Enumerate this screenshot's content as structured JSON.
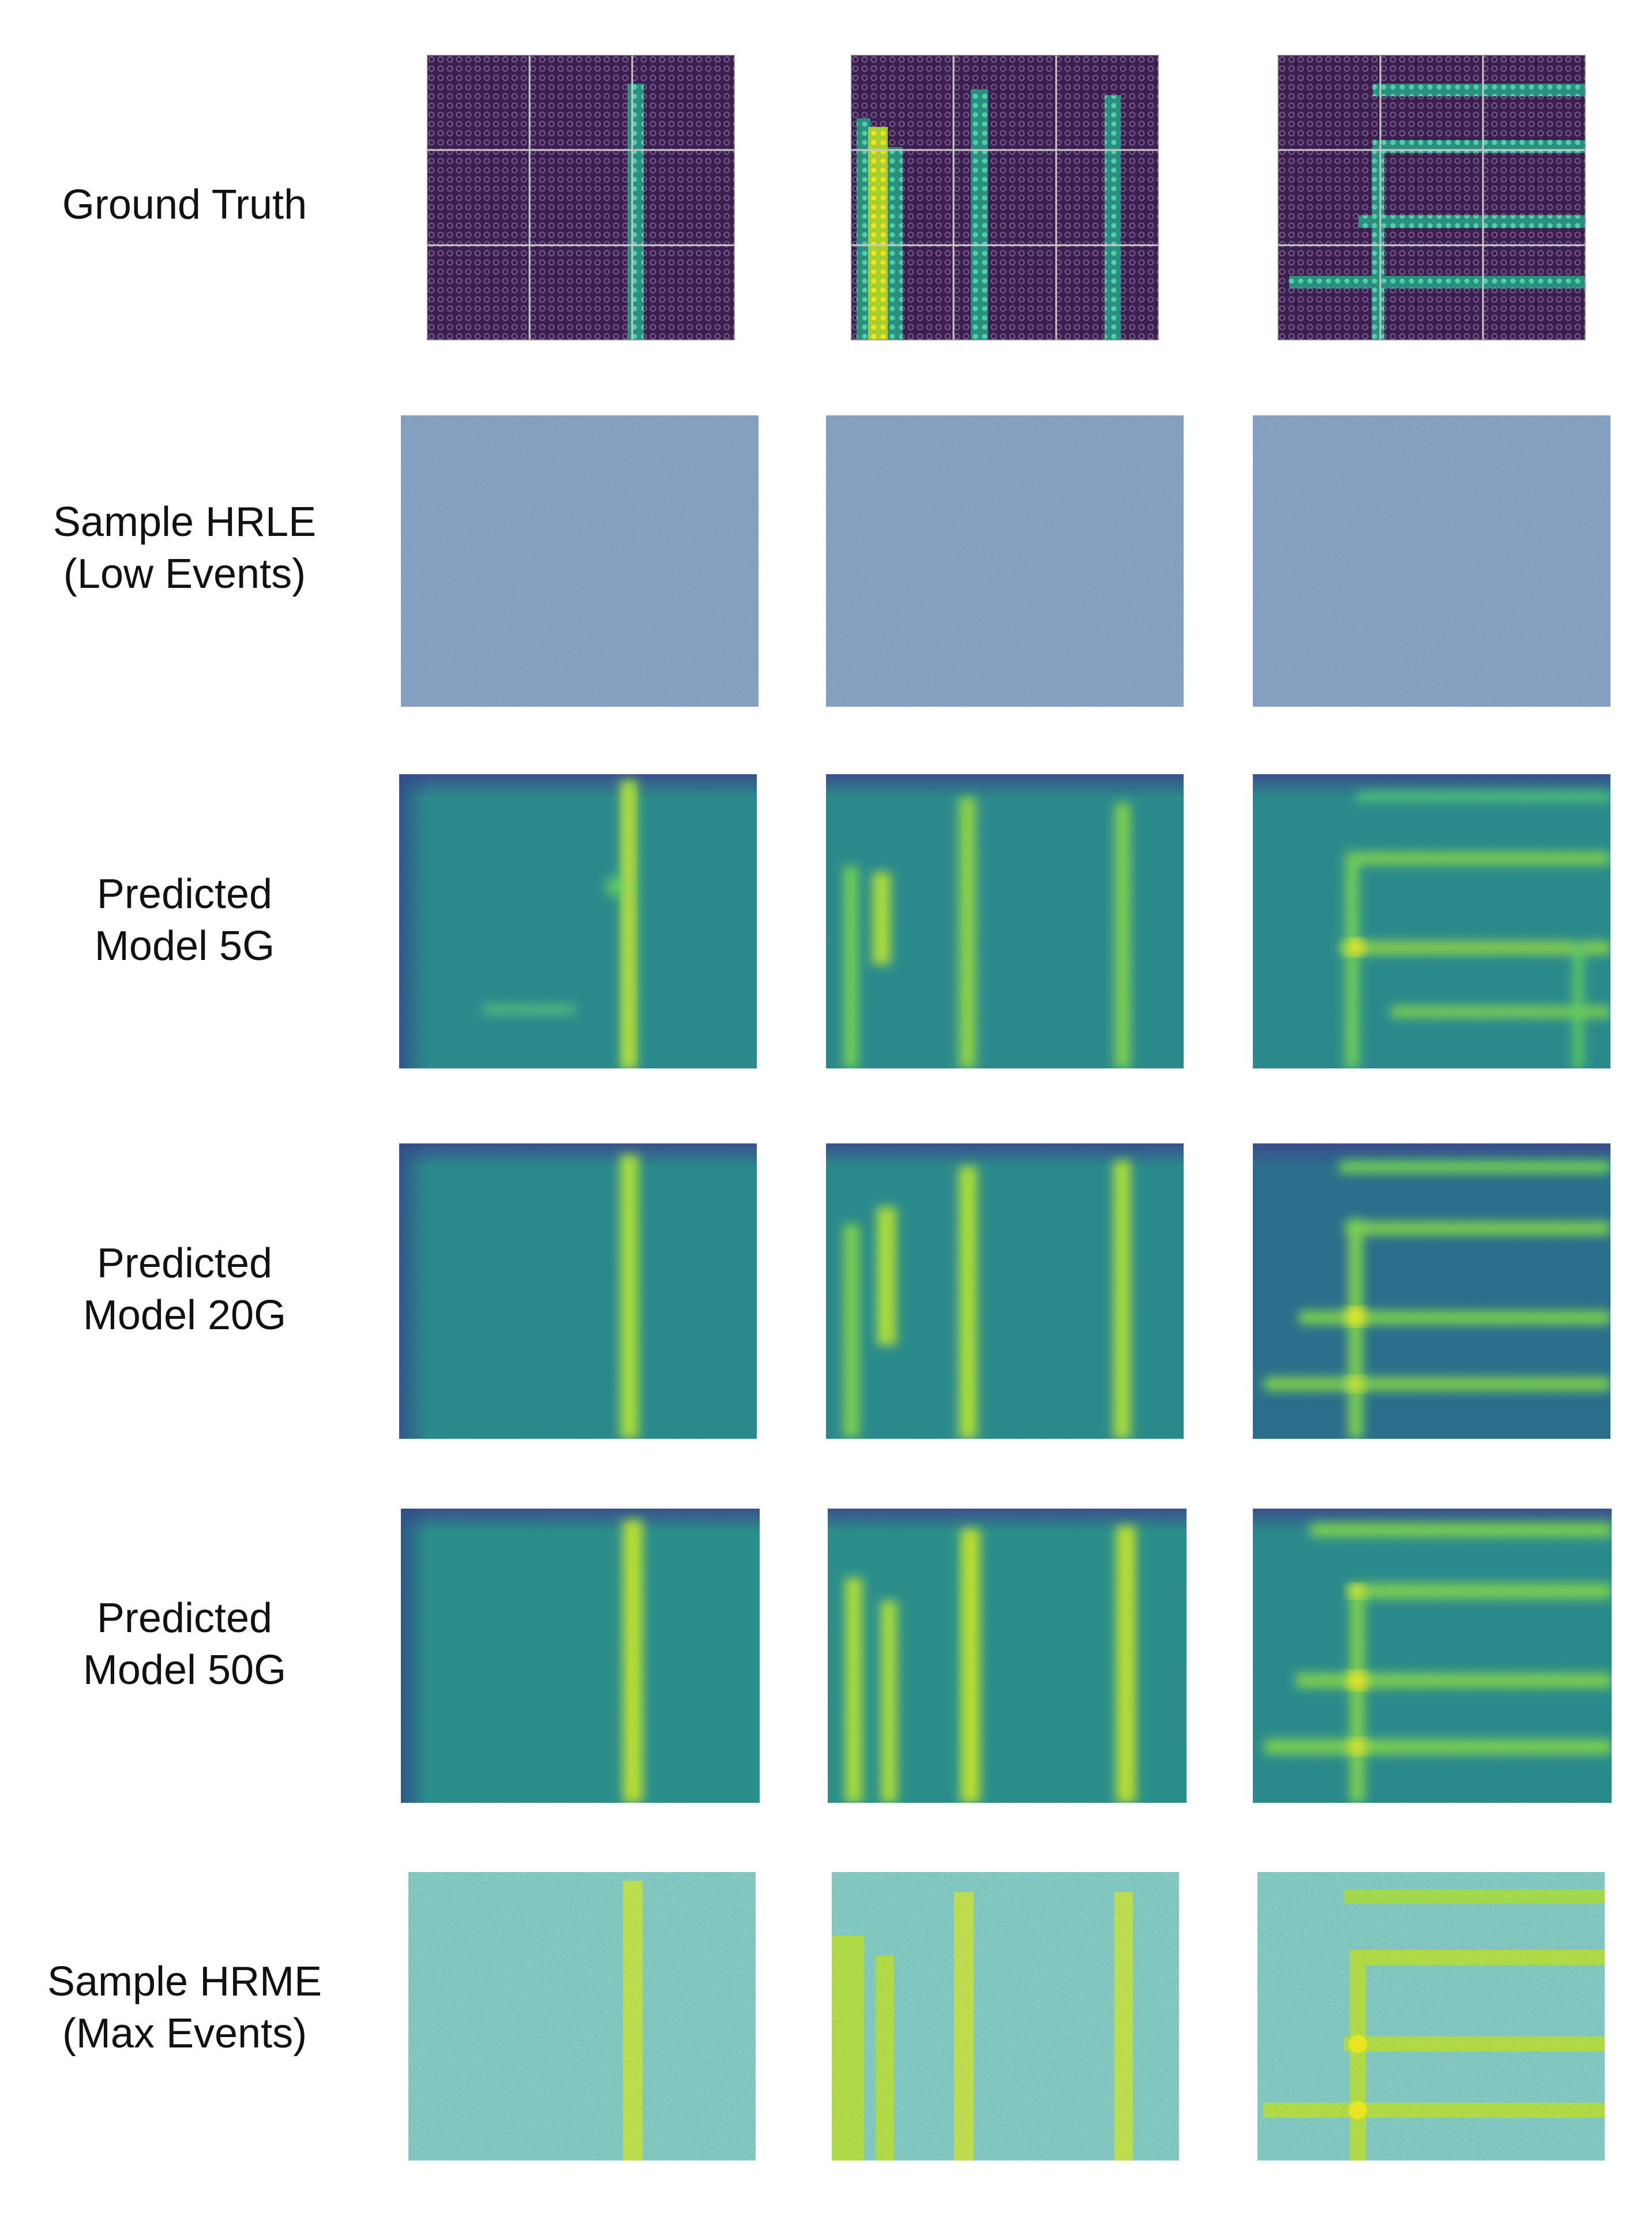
{
  "rows": [
    {
      "key": "gt",
      "label_lines": [
        "Ground Truth"
      ]
    },
    {
      "key": "hrle",
      "label_lines": [
        "Sample HRLE",
        "(Low Events)"
      ]
    },
    {
      "key": "m5",
      "label_lines": [
        "Predicted",
        "Model 5G"
      ]
    },
    {
      "key": "m20",
      "label_lines": [
        "Predicted",
        "Model 20G"
      ]
    },
    {
      "key": "m50",
      "label_lines": [
        "Predicted",
        "Model 50G"
      ]
    },
    {
      "key": "hrme",
      "label_lines": [
        "Sample HRME",
        "(Max Events)"
      ]
    }
  ],
  "colors": {
    "gt_background": "#3b1f4f",
    "gt_dot": "#7a5a8c",
    "gt_line": "#3fbf9f",
    "gt_line_bright": "#f2e51d",
    "grid": "#c9c9c9",
    "viridis_dark": "#440154",
    "viridis_blue": "#31688e",
    "viridis_teal": "#21918c",
    "viridis_green": "#5ec962",
    "viridis_yellow": "#fde725"
  },
  "samples": [
    {
      "name": "sample-1",
      "structure": "single vertical line"
    },
    {
      "name": "sample-2",
      "structure": "four vertical lines"
    },
    {
      "name": "sample-3",
      "structure": "crossing lines"
    }
  ]
}
